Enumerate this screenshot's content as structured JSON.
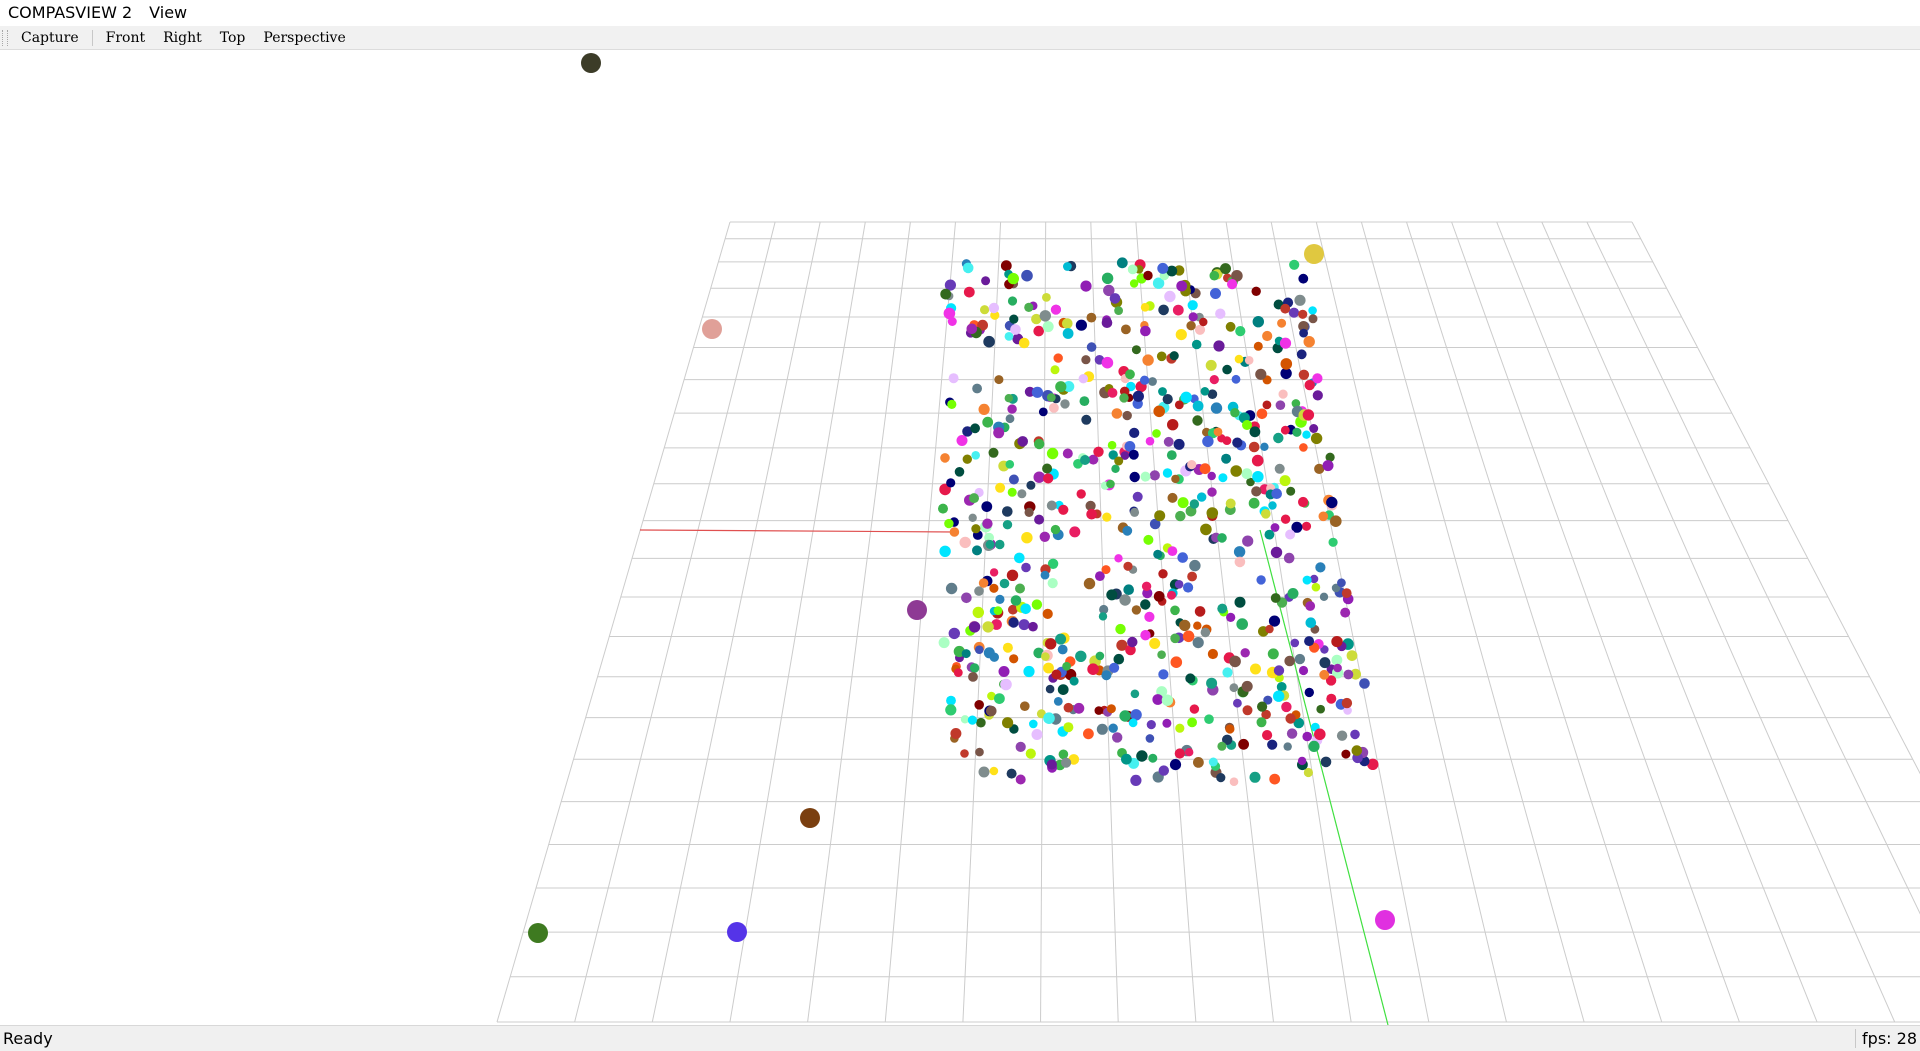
{
  "app": {
    "title": "COMPASVIEW 2",
    "menus": [
      {
        "label": "View"
      }
    ]
  },
  "toolbar": {
    "buttons": [
      {
        "label": "Capture"
      },
      {
        "label": "Front"
      },
      {
        "label": "Right"
      },
      {
        "label": "Top"
      },
      {
        "label": "Perspective"
      }
    ]
  },
  "viewport": {
    "background": "#ffffff",
    "grid_color": "#cccccc",
    "axes": {
      "x_axis_color": "#e05050",
      "y_axis_color": "#40e040"
    },
    "point_cloud": {
      "description": "scatter of several hundred randomly colored points",
      "palette": [
        "#e6194b",
        "#3cb44b",
        "#ffe119",
        "#4363d8",
        "#f58231",
        "#911eb4",
        "#46f0f0",
        "#f032e6",
        "#bcf60c",
        "#fabebe",
        "#008080",
        "#e6beff",
        "#9a6324",
        "#800000",
        "#aaffc3",
        "#808000",
        "#000075",
        "#1e3a5f",
        "#2ecc71",
        "#8e44ad",
        "#16a085",
        "#c0392b",
        "#27ae60",
        "#2980b9",
        "#d35400",
        "#7f8c8d",
        "#00bcd4",
        "#e91e63",
        "#673ab7",
        "#4caf50",
        "#9c27b0",
        "#3f51b5",
        "#009688",
        "#ff5722",
        "#795548",
        "#607d8b",
        "#cddc39",
        "#00e5ff",
        "#76ff03",
        "#1a237e",
        "#b71c1c",
        "#004d40",
        "#6a1b9a",
        "#33691e"
      ]
    }
  },
  "status": {
    "text": "Ready",
    "fps": "fps: 28"
  }
}
